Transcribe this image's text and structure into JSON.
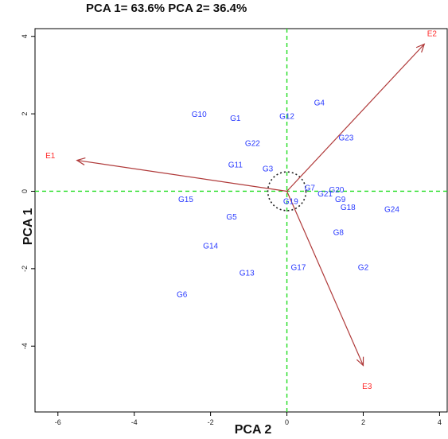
{
  "chart_data": {
    "type": "scatter",
    "title": "PCA 1= 63.6% PCA 2= 36.4%",
    "xlabel": "PCA 2",
    "ylabel": "PCA 1",
    "xlim": [
      -6.6,
      4.2
    ],
    "ylim": [
      -5.7,
      4.2
    ],
    "xticks": [
      -6,
      -4,
      -2,
      0,
      2,
      4
    ],
    "yticks": [
      -4,
      -2,
      0,
      2,
      4
    ],
    "genotypes": [
      {
        "name": "G10",
        "x": -2.3,
        "y": 2.0
      },
      {
        "name": "G1",
        "x": -1.35,
        "y": 1.9
      },
      {
        "name": "G12",
        "x": 0.0,
        "y": 1.95
      },
      {
        "name": "G4",
        "x": 0.85,
        "y": 2.3
      },
      {
        "name": "G22",
        "x": -0.9,
        "y": 1.25
      },
      {
        "name": "G23",
        "x": 1.55,
        "y": 1.4
      },
      {
        "name": "G11",
        "x": -1.35,
        "y": 0.7
      },
      {
        "name": "G3",
        "x": -0.5,
        "y": 0.6
      },
      {
        "name": "G7",
        "x": 0.6,
        "y": 0.1
      },
      {
        "name": "G20",
        "x": 1.3,
        "y": 0.05
      },
      {
        "name": "G21",
        "x": 1.0,
        "y": -0.05
      },
      {
        "name": "G9",
        "x": 1.4,
        "y": -0.2
      },
      {
        "name": "G19",
        "x": 0.1,
        "y": -0.25
      },
      {
        "name": "G18",
        "x": 1.6,
        "y": -0.4
      },
      {
        "name": "G24",
        "x": 2.75,
        "y": -0.45
      },
      {
        "name": "G15",
        "x": -2.65,
        "y": -0.2
      },
      {
        "name": "G5",
        "x": -1.45,
        "y": -0.65
      },
      {
        "name": "G8",
        "x": 1.35,
        "y": -1.05
      },
      {
        "name": "G14",
        "x": -2.0,
        "y": -1.4
      },
      {
        "name": "G17",
        "x": 0.3,
        "y": -1.95
      },
      {
        "name": "G2",
        "x": 2.0,
        "y": -1.95
      },
      {
        "name": "G13",
        "x": -1.05,
        "y": -2.1
      },
      {
        "name": "G6",
        "x": -2.75,
        "y": -2.65
      }
    ],
    "environments": [
      {
        "name": "E1",
        "x": -5.5,
        "y": 0.8,
        "label_x": -6.2,
        "label_y": 0.85
      },
      {
        "name": "E2",
        "x": 3.6,
        "y": 3.8,
        "label_x": 3.8,
        "label_y": 4.0
      },
      {
        "name": "E3",
        "x": 2.0,
        "y": -4.5,
        "label_x": 2.1,
        "label_y": -5.1
      }
    ],
    "origin_circle_radius": 0.5,
    "reference_lines": {
      "x": 0,
      "y": 0
    },
    "colors": {
      "genotype": "#2a3bff",
      "environment_label": "#ff2a2a",
      "vector": "#b03a3a",
      "reference": "#22dd22"
    }
  }
}
